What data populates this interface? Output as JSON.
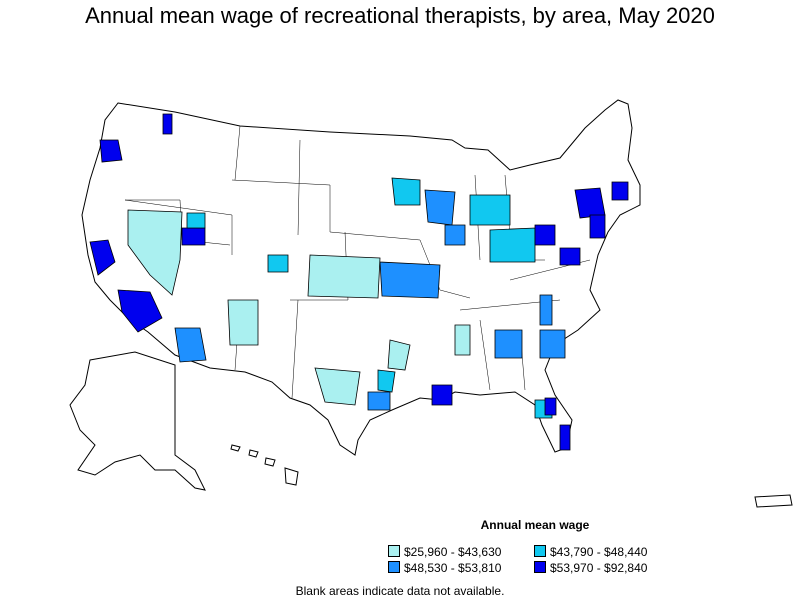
{
  "title": "Annual mean wage of recreational therapists, by area, May 2020",
  "legend": {
    "title": "Annual mean wage",
    "bins": [
      {
        "label": "$25,960 - $43,630",
        "color": "#aaf0f0"
      },
      {
        "label": "$43,790 - $48,440",
        "color": "#11c8f0"
      },
      {
        "label": "$48,530 - $53,810",
        "color": "#1e90ff"
      },
      {
        "label": "$53,970 - $92,840",
        "color": "#0000ee"
      }
    ]
  },
  "note": "Blank areas indicate data not available.",
  "map_regions": [
    {
      "area": "Nevada",
      "bin": 0
    },
    {
      "area": "Kansas",
      "bin": 0
    },
    {
      "area": "New Mexico",
      "bin": 0
    },
    {
      "area": "Western Washington",
      "bin": 3
    },
    {
      "area": "Western Oregon",
      "bin": 3
    },
    {
      "area": "San Francisco Bay Area",
      "bin": 3
    },
    {
      "area": "Los Angeles",
      "bin": 3
    },
    {
      "area": "San Diego",
      "bin": 3
    },
    {
      "area": "Phoenix",
      "bin": 2
    },
    {
      "area": "Denver",
      "bin": 3
    },
    {
      "area": "Grand Junction",
      "bin": 1
    },
    {
      "area": "Salt Lake",
      "bin": 2
    },
    {
      "area": "Minneapolis",
      "bin": 1
    },
    {
      "area": "Chicago",
      "bin": 2
    },
    {
      "area": "Detroit",
      "bin": 2
    },
    {
      "area": "Ohio",
      "bin": 1
    },
    {
      "area": "Pennsylvania",
      "bin": 3
    },
    {
      "area": "New York",
      "bin": 3
    },
    {
      "area": "New England",
      "bin": 3
    },
    {
      "area": "Washington DC",
      "bin": 3
    },
    {
      "area": "Virginia",
      "bin": 2
    },
    {
      "area": "North Carolina",
      "bin": 2
    },
    {
      "area": "Atlanta",
      "bin": 2
    },
    {
      "area": "Tennessee",
      "bin": 0
    },
    {
      "area": "Missouri",
      "bin": 1
    },
    {
      "area": "Texas",
      "bin": 0
    },
    {
      "area": "Houston",
      "bin": 2
    },
    {
      "area": "New Orleans",
      "bin": 3
    },
    {
      "area": "Florida",
      "bin": 1
    },
    {
      "area": "Miami",
      "bin": 3
    },
    {
      "area": "Tampa",
      "bin": 3
    }
  ]
}
